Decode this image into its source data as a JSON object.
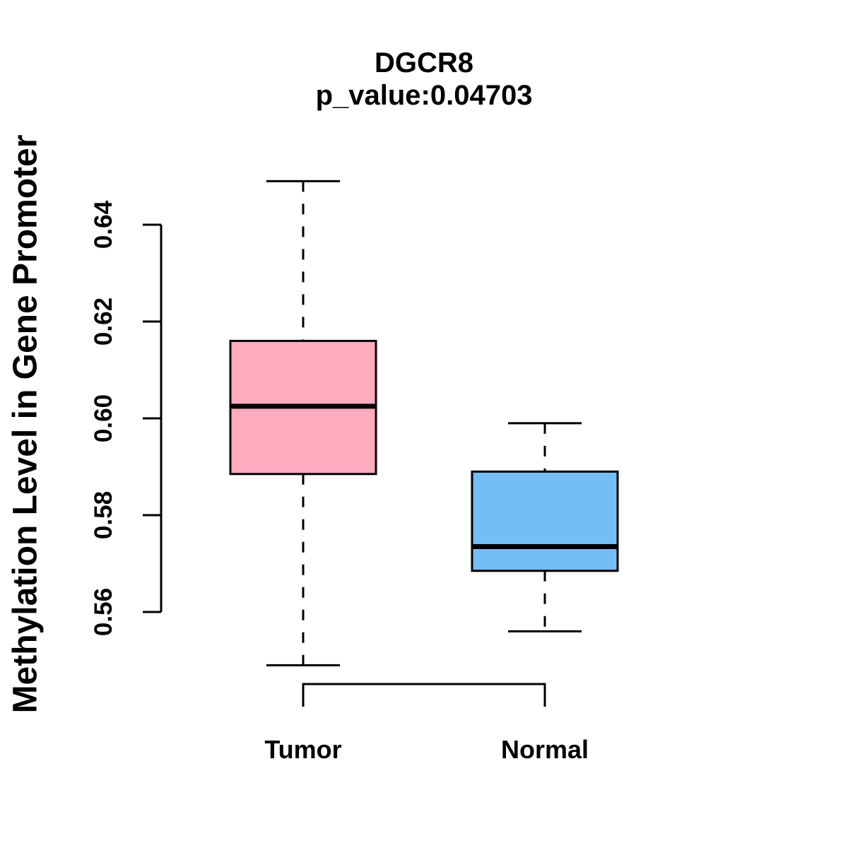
{
  "figure": {
    "background_color": "#FFFFFF",
    "line_color": "#000000"
  },
  "chart_data": {
    "type": "boxplot",
    "title": "DGCR8",
    "subtitle": "p_value:0.04703",
    "xlabel": "",
    "ylabel": "Methylation Level in Gene Promoter",
    "ylim": [
      0.56,
      0.64
    ],
    "yticks": [
      {
        "value": 0.56,
        "label": "0.56"
      },
      {
        "value": 0.58,
        "label": "0.58"
      },
      {
        "value": 0.6,
        "label": "0.60"
      },
      {
        "value": 0.62,
        "label": "0.62"
      },
      {
        "value": 0.64,
        "label": "0.64"
      }
    ],
    "grid": false,
    "legend": "none",
    "axis_color": "#000000",
    "whisker_style": "dashed",
    "groups": [
      {
        "label": "Tumor",
        "fill_color": "#FFACC0",
        "stats": {
          "whisker_low": 0.549,
          "q1": 0.5885,
          "median": 0.6025,
          "q3": 0.616,
          "whisker_high": 0.649
        }
      },
      {
        "label": "Normal",
        "fill_color": "#74BEF8",
        "stats": {
          "whisker_low": 0.556,
          "q1": 0.5685,
          "median": 0.5735,
          "q3": 0.589,
          "whisker_high": 0.599
        }
      }
    ]
  }
}
